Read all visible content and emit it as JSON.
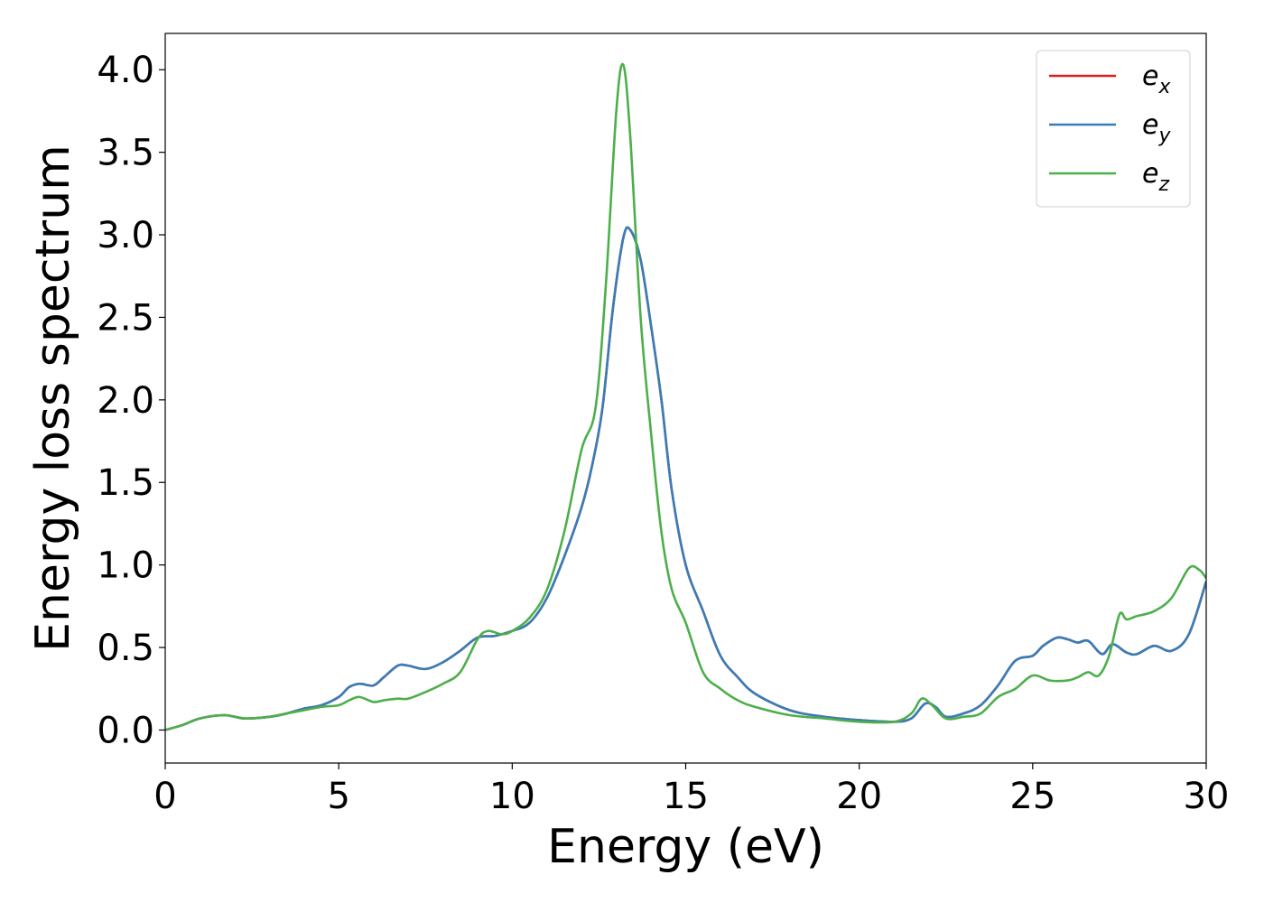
{
  "chart_data": {
    "type": "line",
    "xlabel": "Energy (eV)",
    "ylabel": "Energy loss spectrum",
    "xlim": [
      0,
      30
    ],
    "ylim": [
      -0.2,
      4.22
    ],
    "xticks": [
      0,
      5,
      10,
      15,
      20,
      25,
      30
    ],
    "xtick_labels": [
      "0",
      "5",
      "10",
      "15",
      "20",
      "25",
      "30"
    ],
    "yticks": [
      0.0,
      0.5,
      1.0,
      1.5,
      2.0,
      2.5,
      3.0,
      3.5,
      4.0
    ],
    "ytick_labels": [
      "0.0",
      "0.5",
      "1.0",
      "1.5",
      "2.0",
      "2.5",
      "3.0",
      "3.5",
      "4.0"
    ],
    "grid": false,
    "legend": {
      "position": "top-right",
      "entries": [
        {
          "base": "e",
          "sub": "x",
          "color": "#e41a1c"
        },
        {
          "base": "e",
          "sub": "y",
          "color": "#377eb8"
        },
        {
          "base": "e",
          "sub": "z",
          "color": "#4daf4a"
        }
      ]
    },
    "series": [
      {
        "name": "e_x",
        "color": "#e41a1c",
        "x": [
          0,
          0.5,
          1,
          1.7,
          2.3,
          3,
          3.5,
          4,
          4.5,
          5,
          5.3,
          5.6,
          6,
          6.3,
          6.7,
          7,
          7.5,
          8,
          8.5,
          9,
          9.5,
          10,
          10.5,
          11,
          11.5,
          12,
          12.3,
          12.6,
          12.9,
          13.2,
          13.4,
          13.7,
          14,
          14.3,
          14.6,
          15,
          15.5,
          16,
          16.5,
          17,
          18,
          19,
          20,
          21,
          21.5,
          21.9,
          22.2,
          22.5,
          23,
          23.5,
          24,
          24.5,
          25,
          25.3,
          25.7,
          26,
          26.3,
          26.6,
          27,
          27.3,
          27.7,
          28,
          28.5,
          29,
          29.5,
          30
        ],
        "y": [
          0.0,
          0.03,
          0.07,
          0.09,
          0.07,
          0.08,
          0.1,
          0.13,
          0.15,
          0.2,
          0.26,
          0.28,
          0.27,
          0.32,
          0.39,
          0.39,
          0.37,
          0.41,
          0.48,
          0.56,
          0.57,
          0.6,
          0.65,
          0.8,
          1.05,
          1.35,
          1.6,
          1.95,
          2.55,
          2.98,
          3.03,
          2.85,
          2.45,
          2.0,
          1.45,
          1.0,
          0.72,
          0.45,
          0.32,
          0.22,
          0.12,
          0.08,
          0.06,
          0.05,
          0.07,
          0.16,
          0.14,
          0.08,
          0.1,
          0.15,
          0.27,
          0.42,
          0.45,
          0.51,
          0.56,
          0.55,
          0.53,
          0.54,
          0.46,
          0.52,
          0.47,
          0.46,
          0.51,
          0.48,
          0.58,
          0.9
        ]
      },
      {
        "name": "e_y",
        "color": "#377eb8",
        "x": [
          0,
          0.5,
          1,
          1.7,
          2.3,
          3,
          3.5,
          4,
          4.5,
          5,
          5.3,
          5.6,
          6,
          6.3,
          6.7,
          7,
          7.5,
          8,
          8.5,
          9,
          9.5,
          10,
          10.5,
          11,
          11.5,
          12,
          12.3,
          12.6,
          12.9,
          13.2,
          13.4,
          13.7,
          14,
          14.3,
          14.6,
          15,
          15.5,
          16,
          16.5,
          17,
          18,
          19,
          20,
          21,
          21.5,
          21.9,
          22.2,
          22.5,
          23,
          23.5,
          24,
          24.5,
          25,
          25.3,
          25.7,
          26,
          26.3,
          26.6,
          27,
          27.3,
          27.7,
          28,
          28.5,
          29,
          29.5,
          30
        ],
        "y": [
          0.0,
          0.03,
          0.07,
          0.09,
          0.07,
          0.08,
          0.1,
          0.13,
          0.15,
          0.2,
          0.26,
          0.28,
          0.27,
          0.32,
          0.39,
          0.39,
          0.37,
          0.41,
          0.48,
          0.56,
          0.57,
          0.6,
          0.65,
          0.8,
          1.05,
          1.35,
          1.6,
          1.95,
          2.55,
          2.98,
          3.03,
          2.85,
          2.45,
          2.0,
          1.45,
          1.0,
          0.72,
          0.45,
          0.32,
          0.22,
          0.12,
          0.08,
          0.06,
          0.05,
          0.07,
          0.16,
          0.14,
          0.08,
          0.1,
          0.15,
          0.27,
          0.42,
          0.45,
          0.51,
          0.56,
          0.55,
          0.53,
          0.54,
          0.46,
          0.52,
          0.47,
          0.46,
          0.51,
          0.48,
          0.58,
          0.9
        ]
      },
      {
        "name": "e_z",
        "color": "#4daf4a",
        "x": [
          0,
          0.5,
          1,
          1.7,
          2.3,
          3,
          3.5,
          4,
          4.5,
          5,
          5.3,
          5.6,
          6,
          6.3,
          6.7,
          7,
          7.5,
          8,
          8.5,
          9,
          9.3,
          9.7,
          10,
          10.5,
          11,
          11.5,
          12,
          12.4,
          12.7,
          13,
          13.2,
          13.4,
          13.7,
          14,
          14.3,
          14.6,
          15,
          15.5,
          16,
          16.5,
          17,
          18,
          19,
          20,
          21,
          21.5,
          21.8,
          22.1,
          22.5,
          23,
          23.5,
          24,
          24.5,
          25,
          25.5,
          26,
          26.3,
          26.6,
          26.9,
          27.2,
          27.5,
          27.7,
          28,
          28.5,
          29,
          29.5,
          29.8,
          30
        ],
        "y": [
          0.0,
          0.03,
          0.07,
          0.09,
          0.07,
          0.08,
          0.1,
          0.12,
          0.14,
          0.15,
          0.18,
          0.2,
          0.17,
          0.18,
          0.19,
          0.19,
          0.23,
          0.28,
          0.35,
          0.55,
          0.6,
          0.58,
          0.6,
          0.68,
          0.85,
          1.2,
          1.7,
          1.95,
          2.7,
          3.75,
          4.03,
          3.6,
          2.5,
          1.8,
          1.2,
          0.85,
          0.65,
          0.35,
          0.25,
          0.18,
          0.14,
          0.09,
          0.07,
          0.05,
          0.05,
          0.1,
          0.19,
          0.15,
          0.07,
          0.08,
          0.1,
          0.2,
          0.25,
          0.33,
          0.3,
          0.3,
          0.32,
          0.35,
          0.33,
          0.45,
          0.7,
          0.67,
          0.69,
          0.72,
          0.8,
          0.98,
          0.97,
          0.92
        ]
      }
    ]
  }
}
